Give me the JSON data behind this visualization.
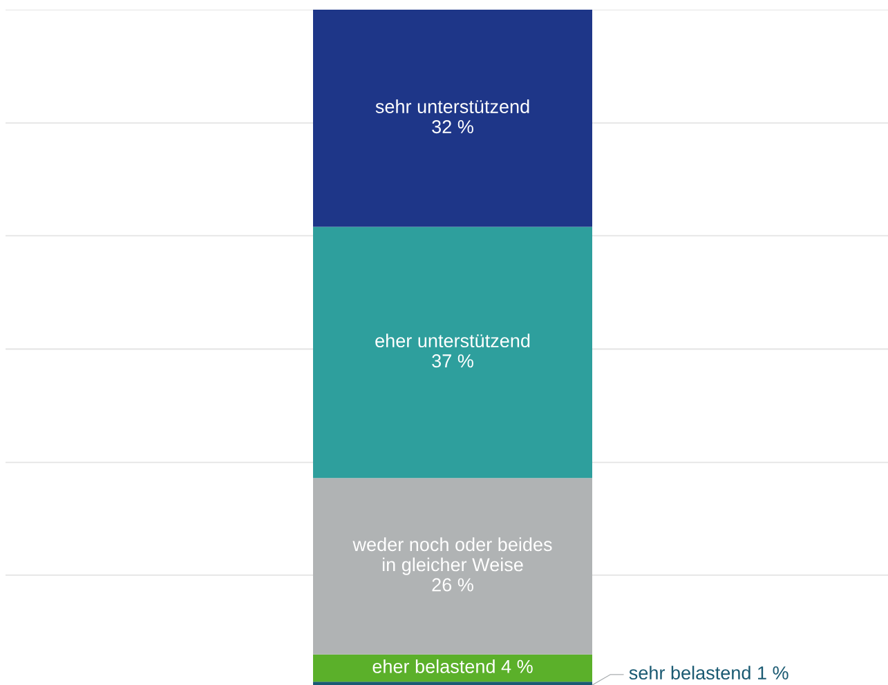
{
  "chart_data": {
    "type": "bar",
    "stacked": true,
    "categories": [
      null
    ],
    "series": [
      {
        "name": "sehr belastend",
        "color": "#1a5a72",
        "values": [
          1
        ],
        "value_labels": [
          "1 %"
        ]
      },
      {
        "name": "eher belastend",
        "color": "#5bb02a",
        "values": [
          4
        ],
        "value_labels": [
          "4 %"
        ]
      },
      {
        "name": "weder noch oder beides\nin gleicher Weise",
        "color": "#b0b3b4",
        "values": [
          26
        ],
        "value_labels": [
          "26 %"
        ]
      },
      {
        "name": "eher unterstützend",
        "color": "#2e9f9d",
        "values": [
          37
        ],
        "value_labels": [
          "37 %"
        ]
      },
      {
        "name": "sehr unterstützend",
        "color": "#1e3688",
        "values": [
          32
        ],
        "value_labels": [
          "32 %"
        ]
      }
    ],
    "ylim": [
      0,
      100
    ],
    "yticks": [
      {
        "value": 16.7,
        "label": null
      },
      {
        "value": 33.3,
        "label": null
      },
      {
        "value": 50,
        "label": null
      },
      {
        "value": 66.7,
        "label": null
      },
      {
        "value": 83.3,
        "label": null
      },
      {
        "value": 100,
        "label": null
      }
    ],
    "grid": "y"
  }
}
